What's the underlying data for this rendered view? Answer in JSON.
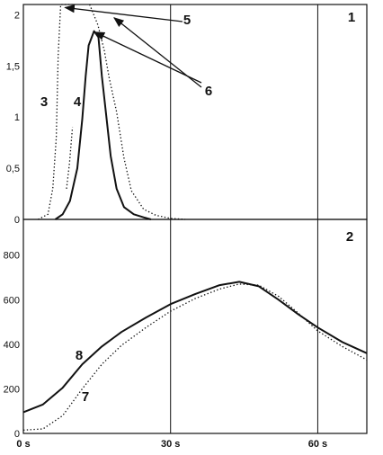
{
  "chart_data": [
    {
      "type": "line",
      "panel_label": "1",
      "grid": true,
      "xlim": [
        0,
        70
      ],
      "ylim": [
        0,
        2.1
      ],
      "x_ticks": [
        0,
        30,
        60
      ],
      "y_ticks": [
        0,
        0.5,
        1,
        1.5,
        2
      ],
      "y_tick_labels": [
        "0",
        "0,5",
        "1",
        "1,5",
        "2"
      ],
      "series": [
        {
          "label": "3",
          "style": "dotted",
          "x": [
            3,
            5,
            6,
            6.7,
            7.1,
            7.6,
            8.5,
            10
          ],
          "y": [
            0,
            0.05,
            0.3,
            0.8,
            1.6,
            2.1,
            2.1,
            2.1
          ]
        },
        {
          "label": "4",
          "style": "solid",
          "x": [
            6.5,
            8,
            9.5,
            11,
            12,
            12.7,
            13.3,
            14.4,
            15.3,
            16,
            16.7,
            17.8,
            19,
            20.5,
            22.5,
            24.5,
            26
          ],
          "y": [
            0,
            0.05,
            0.18,
            0.5,
            0.98,
            1.4,
            1.7,
            1.84,
            1.78,
            1.4,
            1.1,
            0.62,
            0.3,
            0.12,
            0.05,
            0.02,
            0
          ]
        },
        {
          "style": "dotted",
          "x": [
            13.5,
            15.2,
            16.5,
            17.5,
            19,
            20.5,
            22,
            24.5,
            27,
            30,
            33
          ],
          "y": [
            2.1,
            1.9,
            1.65,
            1.38,
            1.05,
            0.6,
            0.28,
            0.1,
            0.04,
            0.01,
            0
          ]
        },
        {
          "style": "dotted",
          "x": [
            8.8,
            9.4,
            10
          ],
          "y": [
            0.3,
            0.55,
            0.9
          ]
        }
      ],
      "annotations": [
        {
          "label": "5",
          "arrow_to": [
            8.5,
            2.07
          ]
        },
        {
          "label": "6",
          "arrow_to": [
            [
              14.6,
              1.83
            ],
            [
              18.5,
              1.97
            ]
          ]
        }
      ]
    },
    {
      "type": "line",
      "panel_label": "2",
      "grid": true,
      "xlim": [
        0,
        70
      ],
      "ylim": [
        0,
        960
      ],
      "x_ticks": [
        0,
        30,
        60
      ],
      "x_tick_labels": [
        "0 s",
        "30 s",
        "60 s"
      ],
      "y_ticks": [
        0,
        200,
        400,
        600,
        800
      ],
      "y_tick_labels": [
        "0",
        "200",
        "400",
        "600",
        "800"
      ],
      "series": [
        {
          "label": "8",
          "style": "solid",
          "x": [
            0,
            4,
            8,
            12,
            16,
            20,
            25,
            30,
            35,
            40,
            44,
            48,
            52,
            56,
            60,
            65,
            70
          ],
          "y": [
            95,
            130,
            205,
            310,
            390,
            455,
            520,
            580,
            625,
            665,
            680,
            660,
            600,
            535,
            475,
            410,
            360
          ]
        },
        {
          "label": "7",
          "style": "dotted",
          "x": [
            0,
            4,
            8,
            12,
            16,
            20,
            25,
            30,
            35,
            40,
            44,
            48,
            52,
            56,
            60,
            65,
            70
          ],
          "y": [
            15,
            20,
            80,
            200,
            310,
            395,
            475,
            548,
            605,
            648,
            670,
            665,
            615,
            540,
            460,
            390,
            330
          ]
        }
      ]
    }
  ]
}
